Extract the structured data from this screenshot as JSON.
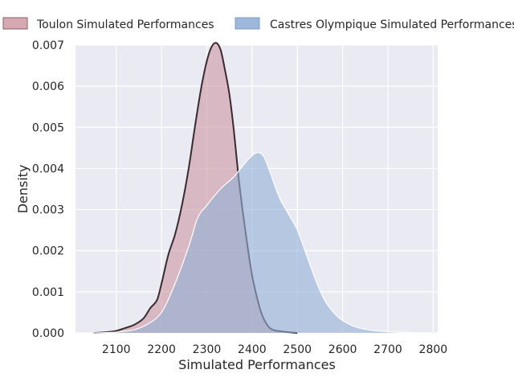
{
  "chart_data": {
    "type": "area",
    "xlabel": "Simulated Performances",
    "ylabel": "Density",
    "xlim": [
      2010,
      2810
    ],
    "ylim": [
      0,
      0.007
    ],
    "xticks": [
      "2100",
      "2200",
      "2300",
      "2400",
      "2500",
      "2600",
      "2700",
      "2800"
    ],
    "yticks": [
      "0.000",
      "0.001",
      "0.002",
      "0.003",
      "0.004",
      "0.005",
      "0.006",
      "0.007"
    ],
    "grid": true,
    "legend_position": "top",
    "series": [
      {
        "name": "Toulon Simulated Performances",
        "fill": "#c98e9a",
        "line": "#3a2a30",
        "points": [
          [
            2050,
            0.0
          ],
          [
            2080,
            2e-05
          ],
          [
            2100,
            5e-05
          ],
          [
            2120,
            0.00012
          ],
          [
            2140,
            0.0002
          ],
          [
            2160,
            0.00035
          ],
          [
            2175,
            0.0006
          ],
          [
            2190,
            0.0008
          ],
          [
            2200,
            0.0012
          ],
          [
            2215,
            0.0019
          ],
          [
            2230,
            0.0024
          ],
          [
            2245,
            0.0031
          ],
          [
            2260,
            0.004
          ],
          [
            2275,
            0.0051
          ],
          [
            2290,
            0.0061
          ],
          [
            2305,
            0.0068
          ],
          [
            2318,
            0.00705
          ],
          [
            2330,
            0.0069
          ],
          [
            2340,
            0.0064
          ],
          [
            2350,
            0.0058
          ],
          [
            2360,
            0.0049
          ],
          [
            2370,
            0.0038
          ],
          [
            2380,
            0.0029
          ],
          [
            2390,
            0.0021
          ],
          [
            2400,
            0.0014
          ],
          [
            2410,
            0.0009
          ],
          [
            2420,
            0.0005
          ],
          [
            2432,
            0.00022
          ],
          [
            2445,
            8e-05
          ],
          [
            2470,
            3e-05
          ],
          [
            2500,
            0.0
          ]
        ]
      },
      {
        "name": "Castres Olympique Simulated Performances",
        "fill": "#92b0d6",
        "line": "#ffffff",
        "points": [
          [
            2050,
            0.0
          ],
          [
            2100,
            2e-05
          ],
          [
            2140,
            8e-05
          ],
          [
            2170,
            0.00022
          ],
          [
            2200,
            0.0005
          ],
          [
            2230,
            0.0012
          ],
          [
            2260,
            0.0021
          ],
          [
            2280,
            0.0028
          ],
          [
            2300,
            0.0031
          ],
          [
            2330,
            0.0035
          ],
          [
            2360,
            0.0038
          ],
          [
            2390,
            0.0042
          ],
          [
            2410,
            0.00438
          ],
          [
            2425,
            0.0043
          ],
          [
            2440,
            0.0039
          ],
          [
            2460,
            0.0033
          ],
          [
            2480,
            0.0029
          ],
          [
            2500,
            0.0025
          ],
          [
            2520,
            0.0019
          ],
          [
            2540,
            0.0013
          ],
          [
            2560,
            0.0008
          ],
          [
            2580,
            0.0005
          ],
          [
            2600,
            0.0003
          ],
          [
            2630,
            0.00014
          ],
          [
            2660,
            7e-05
          ],
          [
            2700,
            3e-05
          ],
          [
            2740,
            1e-05
          ],
          [
            2770,
            0.0
          ]
        ]
      }
    ]
  }
}
